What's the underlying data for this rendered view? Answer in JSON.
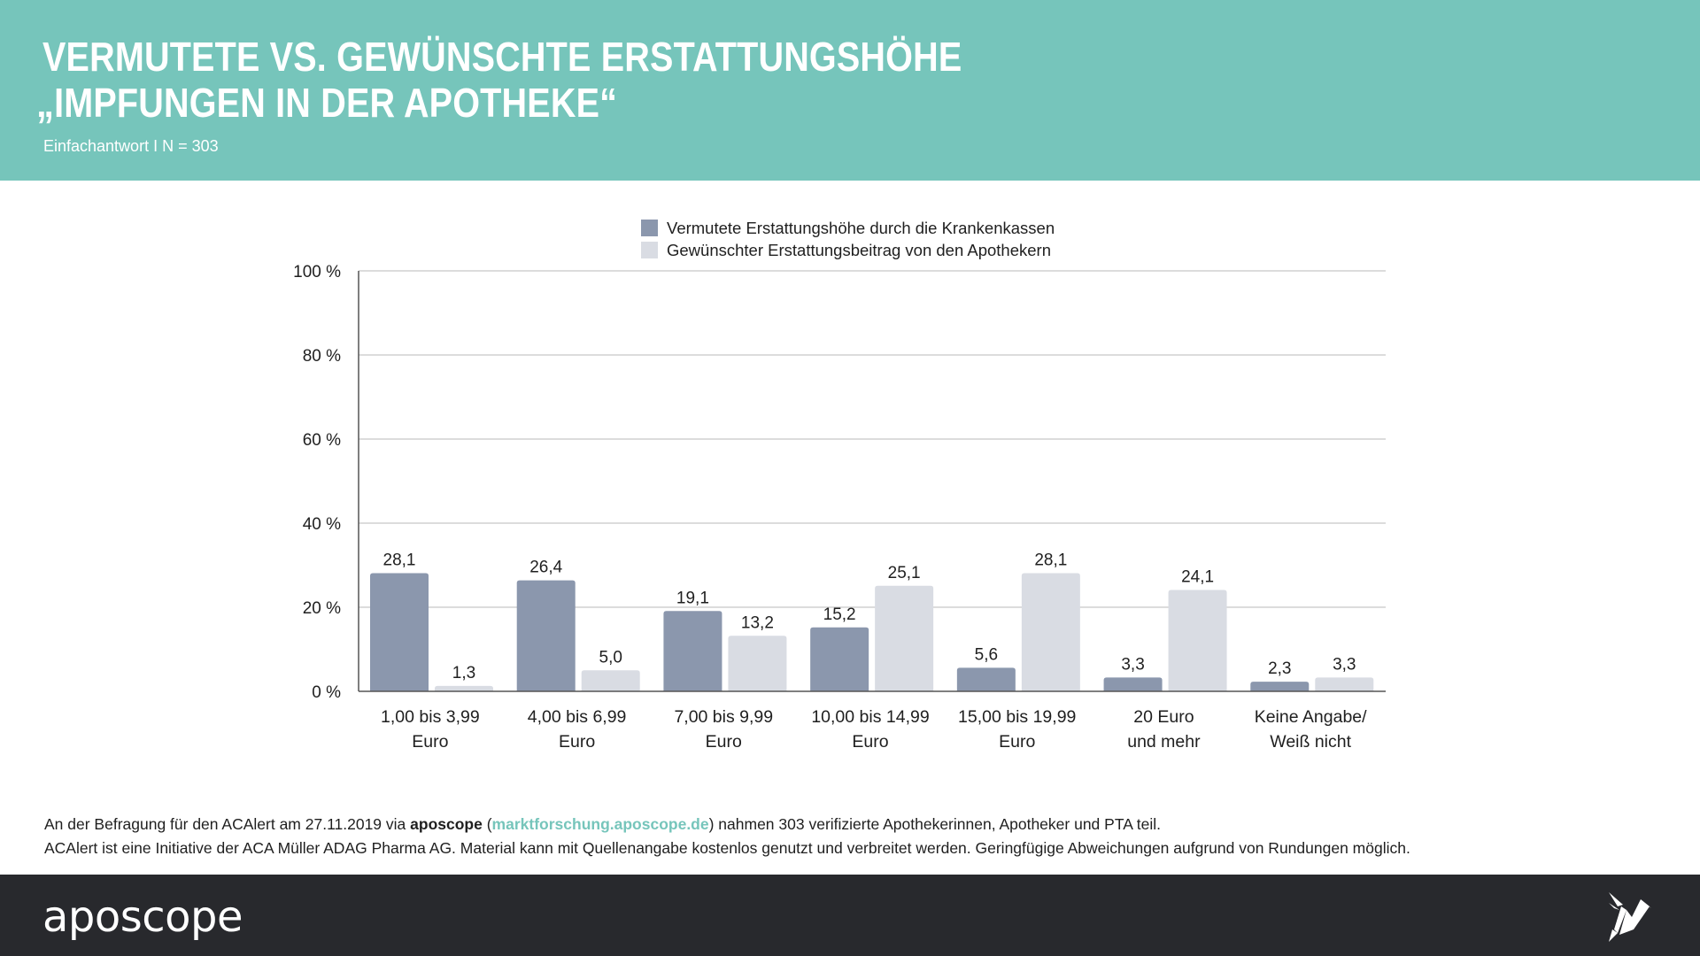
{
  "header": {
    "title_line1": "VERMUTETE VS. GEWÜNSCHTE ERSTATTUNGSHÖHE",
    "title_line2": "„IMPFUNGEN IN DER APOTHEKE“",
    "subtitle": "Einfachantwort I N = 303",
    "background_color": "#76c5bb"
  },
  "chart_data": {
    "type": "bar",
    "title": "VERMUTETE VS. GEWÜNSCHTE ERSTATTUNGSHÖHE „IMPFUNGEN IN DER APOTHEKE“",
    "xlabel": "",
    "ylabel": "",
    "ylim": [
      0,
      100
    ],
    "yticks": [
      0,
      20,
      40,
      60,
      80,
      100
    ],
    "ytick_labels": [
      "0 %",
      "20 %",
      "40 %",
      "60 %",
      "80 %",
      "100 %"
    ],
    "grid": true,
    "legend_position": "top-center",
    "categories": [
      [
        "1,00 bis 3,99",
        "Euro"
      ],
      [
        "4,00 bis 6,99",
        "Euro"
      ],
      [
        "7,00 bis 9,99",
        "Euro"
      ],
      [
        "10,00 bis 14,99",
        "Euro"
      ],
      [
        "15,00 bis 19,99",
        "Euro"
      ],
      [
        "20 Euro",
        "und mehr"
      ],
      [
        "Keine Angabe/",
        "Weiß nicht"
      ]
    ],
    "series": [
      {
        "name": "Vermutete Erstattungshöhe durch die Krankenkassen",
        "color": "#8b97ad",
        "values": [
          28.1,
          26.4,
          19.1,
          15.2,
          5.6,
          3.3,
          2.3
        ],
        "labels": [
          "28,1",
          "26,4",
          "19,1",
          "15,2",
          "5,6",
          "3,3",
          "2,3"
        ]
      },
      {
        "name": "Gewünschter Erstattungsbeitrag von den Apothekern",
        "color": "#d9dce3",
        "values": [
          1.3,
          5.0,
          13.2,
          25.1,
          28.1,
          24.1,
          3.3
        ],
        "labels": [
          "1,3",
          "5,0",
          "13,2",
          "25,1",
          "28,1",
          "24,1",
          "3,3"
        ]
      }
    ]
  },
  "source": {
    "line1_prefix": "An der Befragung für den ACAlert am 27.11.2019 via ",
    "line1_brand": "aposcope",
    "line1_open": " (",
    "line1_link": "marktforschung.aposcope.de",
    "line1_suffix": ") nahmen 303 verifizierte Apothekerinnen, Apotheker und PTA teil.",
    "line2": "ACAlert ist eine Initiative der ACA Müller ADAG Pharma AG. Material kann mit Quellenangabe kostenlos genutzt und verbreitet werden. Geringfügige Abweichungen aufgrund von Rundungen möglich."
  },
  "footer": {
    "logo_text": "aposcope",
    "icon": "origami-bird-icon",
    "background_color": "#28292d"
  }
}
